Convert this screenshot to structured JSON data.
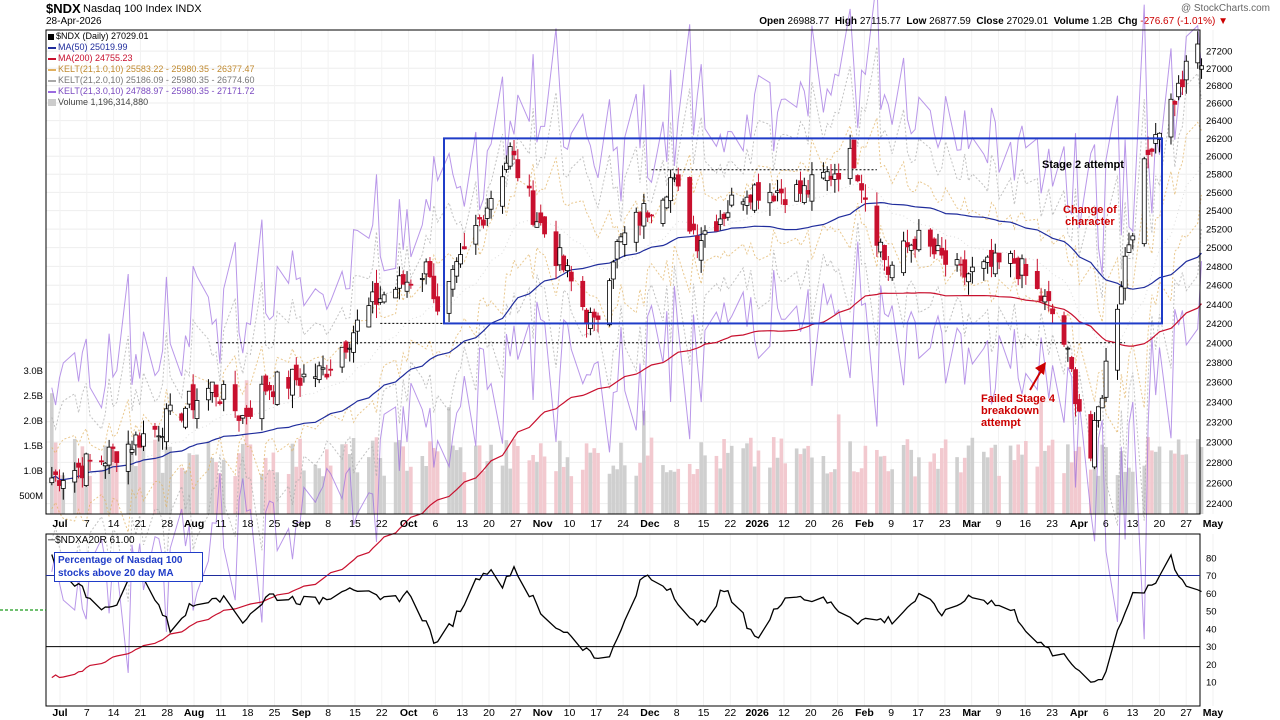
{
  "header": {
    "symbol": "$NDX",
    "name": "Nasdaq 100 Index",
    "exchange": "INDX",
    "date": "28-Apr-2026",
    "watermark": "@ StockCharts.com",
    "ohlc": {
      "open_label": "Open",
      "open": "26988.77",
      "high_label": "High",
      "high": "27115.77",
      "low_label": "Low",
      "low": "26877.59",
      "close_label": "Close",
      "close": "27029.01",
      "volume_label": "Volume",
      "volume": "1.2B",
      "chg_label": "Chg",
      "chg": "-276.67 (-1.01%)"
    }
  },
  "legend": {
    "price": "$NDX (Daily) 27029.01",
    "ma50": "MA(50) 25019.99",
    "ma200": "MA(200) 24755.23",
    "kelt1": "KELT(21,1.0,10) 25583.22 - 25980.35 - 26377.47",
    "kelt2": "KELT(21,2.0,10) 25186.09 - 25980.35 - 26774.60",
    "kelt3": "KELT(21,3.0,10) 24788.97 - 25980.35 - 27171.72",
    "volume": "Volume 1,196,314,880"
  },
  "colors": {
    "up": "#000000",
    "down": "#c8102e",
    "ma50": "#1f2c9c",
    "ma200": "#c8102e",
    "kelt1": "#e0b060",
    "kelt2": "#a8a8a8",
    "kelt3": "#9b6be0",
    "box": "#1f3cc8",
    "volume_up": "#cfcfcf",
    "volume_down": "#f2c9cf"
  },
  "annotations": {
    "stage2": "Stage 2 attempt",
    "choc_1": "Change of",
    "choc_2": "character",
    "failed_1": "Failed Stage 4",
    "failed_2": "breakdown",
    "failed_3": "attempt"
  },
  "lower": {
    "title": "$NDXA20R 61.00",
    "box_line1": "Percentage of Nasdaq 100",
    "box_line2": "stocks above 20 day MA"
  },
  "chart_data": [
    {
      "type": "line",
      "title": "$NDX (Daily)",
      "yscale": "log",
      "ylim": [
        22300,
        27400
      ],
      "y_ticks": [
        22400,
        22600,
        22800,
        23000,
        23200,
        23400,
        23600,
        23800,
        24000,
        24200,
        24400,
        24600,
        24800,
        25000,
        25200,
        25400,
        25600,
        25800,
        26000,
        26200,
        26400,
        26600,
        26800,
        27000,
        27200
      ],
      "x_ticks": [
        "Jul",
        "7",
        "14",
        "21",
        "28",
        "Aug",
        "11",
        "18",
        "25",
        "Sep",
        "8",
        "15",
        "22",
        "Oct",
        "6",
        "13",
        "20",
        "27",
        "Nov",
        "10",
        "17",
        "24",
        "Dec",
        "8",
        "15",
        "22",
        "2026",
        "12",
        "20",
        "26",
        "Feb",
        "9",
        "17",
        "23",
        "Mar",
        "9",
        "16",
        "23",
        "Apr",
        "6",
        "13",
        "20",
        "27",
        "May"
      ],
      "volume_ticks": [
        "500M",
        "1.0B",
        "1.5B",
        "2.0B",
        "2.5B",
        "3.0B"
      ],
      "series": [
        {
          "name": "$NDX",
          "approx_close": [
            {
              "x": "Jul 1",
              "y": 22650
            },
            {
              "x": "Jul 15",
              "y": 22850
            },
            {
              "x": "Jul 29",
              "y": 23150
            },
            {
              "x": "Aug 12",
              "y": 23550
            },
            {
              "x": "Aug 20",
              "y": 23250
            },
            {
              "x": "Aug 26",
              "y": 23550
            },
            {
              "x": "Sep 10",
              "y": 23700
            },
            {
              "x": "Sep 24",
              "y": 24450
            },
            {
              "x": "Oct 8",
              "y": 24800
            },
            {
              "x": "Oct 10",
              "y": 24250
            },
            {
              "x": "Oct 29",
              "y": 26050
            },
            {
              "x": "Nov 4",
              "y": 25400
            },
            {
              "x": "Nov 20",
              "y": 24150
            },
            {
              "x": "Nov 25",
              "y": 24950
            },
            {
              "x": "Dec 10",
              "y": 25750
            },
            {
              "x": "Dec 17",
              "y": 25100
            },
            {
              "x": "Dec 30",
              "y": 25650
            },
            {
              "x": "Jan 14",
              "y": 25600
            },
            {
              "x": "Jan 27",
              "y": 26000
            },
            {
              "x": "Feb 5",
              "y": 24750
            },
            {
              "x": "Feb 12",
              "y": 25100
            },
            {
              "x": "Feb 24",
              "y": 24700
            },
            {
              "x": "Mar 10",
              "y": 24850
            },
            {
              "x": "Mar 20",
              "y": 24300
            },
            {
              "x": "Mar 23",
              "y": 24000
            },
            {
              "x": "Mar 30",
              "y": 22850
            },
            {
              "x": "Apr 8",
              "y": 24900
            },
            {
              "x": "Apr 15",
              "y": 26200
            },
            {
              "x": "Apr 22",
              "y": 26750
            },
            {
              "x": "Apr 27",
              "y": 27250
            },
            {
              "x": "Apr 28",
              "y": 27029.01
            }
          ]
        }
      ],
      "horizontal_levels": [
        24000,
        24200,
        25850
      ],
      "box": {
        "x": [
          "Oct 9",
          "May 1"
        ],
        "y": [
          24200,
          26200
        ]
      }
    },
    {
      "type": "line",
      "title": "$NDXA20R",
      "ylim": [
        0,
        90
      ],
      "y_ticks": [
        10,
        20,
        30,
        40,
        50,
        60,
        70,
        80
      ],
      "reference_lines": [
        30,
        70
      ],
      "last_value": 61.0,
      "series": [
        {
          "name": "$NDXA20R",
          "approx_values": [
            {
              "x": "Jul 1",
              "y": 79
            },
            {
              "x": "Jul 10",
              "y": 60
            },
            {
              "x": "Jul 16",
              "y": 50
            },
            {
              "x": "Jul 24",
              "y": 75
            },
            {
              "x": "Aug 1",
              "y": 40
            },
            {
              "x": "Aug 6",
              "y": 52
            },
            {
              "x": "Aug 13",
              "y": 60
            },
            {
              "x": "Aug 20",
              "y": 45
            },
            {
              "x": "Aug 27",
              "y": 59
            },
            {
              "x": "Sep 8",
              "y": 55
            },
            {
              "x": "Sep 17",
              "y": 65
            },
            {
              "x": "Sep 25",
              "y": 55
            },
            {
              "x": "Oct 3",
              "y": 60
            },
            {
              "x": "Oct 10",
              "y": 30
            },
            {
              "x": "Oct 15",
              "y": 48
            },
            {
              "x": "Oct 22",
              "y": 74
            },
            {
              "x": "Oct 27",
              "y": 66
            },
            {
              "x": "Oct 30",
              "y": 75
            },
            {
              "x": "Nov 7",
              "y": 45
            },
            {
              "x": "Nov 14",
              "y": 37
            },
            {
              "x": "Nov 20",
              "y": 24
            },
            {
              "x": "Nov 25",
              "y": 28
            },
            {
              "x": "Dec 3",
              "y": 70
            },
            {
              "x": "Dec 10",
              "y": 63
            },
            {
              "x": "Dec 17",
              "y": 40
            },
            {
              "x": "Dec 24",
              "y": 62
            },
            {
              "x": "Jan 2",
              "y": 34
            },
            {
              "x": "Jan 9",
              "y": 60
            },
            {
              "x": "Jan 20",
              "y": 55
            },
            {
              "x": "Jan 28",
              "y": 45
            },
            {
              "x": "Feb 6",
              "y": 45
            },
            {
              "x": "Feb 13",
              "y": 58
            },
            {
              "x": "Feb 20",
              "y": 48
            },
            {
              "x": "Feb 27",
              "y": 60
            },
            {
              "x": "Mar 10",
              "y": 49
            },
            {
              "x": "Mar 17",
              "y": 30
            },
            {
              "x": "Mar 24",
              "y": 22
            },
            {
              "x": "Mar 30",
              "y": 12
            },
            {
              "x": "Apr 2",
              "y": 11
            },
            {
              "x": "Apr 6",
              "y": 40
            },
            {
              "x": "Apr 10",
              "y": 60
            },
            {
              "x": "Apr 15",
              "y": 62
            },
            {
              "x": "Apr 20",
              "y": 80
            },
            {
              "x": "Apr 22",
              "y": 69
            },
            {
              "x": "Apr 28",
              "y": 61
            }
          ]
        }
      ]
    }
  ]
}
